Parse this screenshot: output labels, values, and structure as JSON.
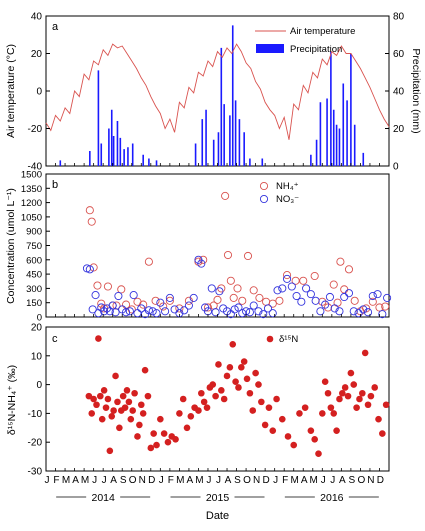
{
  "colors": {
    "air_temperature": "#d9534f",
    "precipitation": "#1a1aff",
    "nh4": "#d9534f",
    "no3": "#3333dd",
    "d15n": "#d42020",
    "axis": "#000000"
  },
  "chart_data": [
    {
      "panel": "a",
      "type": "line",
      "secondary_type": "bar",
      "ylabel": "Air temperature (°C)",
      "y2label": "Precipitation (mm)",
      "ylim": [
        -40,
        40
      ],
      "yticks": [
        -40,
        -20,
        0,
        20,
        40
      ],
      "y2lim": [
        0,
        80
      ],
      "y2ticks": [
        0,
        20,
        40,
        60,
        80
      ],
      "legend_placement": "top-right",
      "series": [
        {
          "name": "Air temperature",
          "axis": "left",
          "style": "line",
          "x": [
            0,
            0.5,
            1,
            1.5,
            2,
            2.5,
            3,
            3.5,
            4,
            4.5,
            5,
            5.5,
            6,
            6.5,
            7,
            7.5,
            8,
            8.5,
            9,
            9.5,
            10,
            10.5,
            11,
            11.5,
            12,
            12.5,
            13,
            13.5,
            14,
            14.5,
            15,
            15.5,
            16,
            16.5,
            17,
            17.5,
            18,
            18.5,
            19,
            19.5,
            20,
            20.5,
            21,
            21.5,
            22,
            22.5,
            23,
            23.5,
            24,
            24.5,
            25,
            25.5,
            26,
            26.5,
            27,
            27.5,
            28,
            28.5,
            29,
            29.5,
            30,
            30.5,
            31,
            31.5,
            32,
            32.5,
            33,
            33.5,
            34,
            34.5,
            35,
            35.5,
            36
          ],
          "values": [
            -17,
            -21,
            -13,
            -16,
            -9,
            -12,
            0,
            -3,
            9,
            6,
            16,
            14,
            22,
            19,
            25,
            23,
            24,
            20,
            16,
            12,
            7,
            3,
            -3,
            -8,
            -12,
            -20,
            -15,
            -22,
            -6,
            -9,
            2,
            -1,
            10,
            8,
            16,
            13,
            21,
            18,
            23,
            20,
            25,
            21,
            15,
            12,
            5,
            1,
            -6,
            -10,
            -13,
            -20,
            -14,
            -26,
            -7,
            -10,
            3,
            -1,
            10,
            7,
            17,
            14,
            21,
            19,
            24,
            20,
            20,
            16,
            12,
            7,
            2,
            -4,
            -10,
            -15,
            -19
          ]
        },
        {
          "name": "Precipitation",
          "axis": "right",
          "style": "bar",
          "x": [
            1.5,
            4.6,
            5.5,
            5.8,
            6.6,
            6.9,
            7.1,
            7.5,
            7.8,
            8.2,
            8.6,
            9.1,
            10.2,
            10.8,
            11.6,
            15.7,
            16.4,
            16.8,
            17.6,
            18.1,
            18.4,
            18.7,
            19.3,
            19.6,
            19.9,
            20.3,
            20.8,
            21.4,
            22.7,
            27.8,
            28.4,
            28.8,
            29.5,
            29.9,
            30.2,
            30.5,
            30.8,
            31.2,
            31.6,
            32.0,
            32.4,
            33.3
          ],
          "values": [
            3,
            8,
            51,
            12,
            20,
            30,
            16,
            24,
            15,
            9,
            10,
            12,
            6,
            4,
            3,
            12,
            25,
            30,
            14,
            18,
            63,
            33,
            27,
            75,
            35,
            25,
            18,
            4,
            4,
            6,
            14,
            34,
            36,
            61,
            30,
            22,
            20,
            44,
            35,
            60,
            22,
            7
          ]
        }
      ]
    },
    {
      "panel": "b",
      "type": "scatter",
      "ylabel": "Concentration (umol L⁻¹)",
      "ylim": [
        0,
        1500
      ],
      "yticks": [
        0,
        150,
        300,
        450,
        600,
        750,
        900,
        1050,
        1200,
        1350,
        1500
      ],
      "legend_placement": "top-right",
      "series": [
        {
          "name": "NH₄⁺",
          "marker": "open-circle",
          "x": [
            4.6,
            4.8,
            5.0,
            5.4,
            5.8,
            6.1,
            6.5,
            7.0,
            7.4,
            7.9,
            8.4,
            9.0,
            9.6,
            10.2,
            10.8,
            11.5,
            12.3,
            13.0,
            14.0,
            15.0,
            16.0,
            16.5,
            17.0,
            17.6,
            18.0,
            18.4,
            18.8,
            19.1,
            19.4,
            19.7,
            20.1,
            20.6,
            21.2,
            21.8,
            22.4,
            23.1,
            23.8,
            24.5,
            25.3,
            26.2,
            27.0,
            28.2,
            29.0,
            29.6,
            30.2,
            30.6,
            30.9,
            31.3,
            31.8,
            32.4,
            33.0,
            33.6,
            34.3,
            35.0,
            35.6
          ],
          "values": [
            1120,
            1000,
            520,
            330,
            140,
            90,
            320,
            120,
            120,
            290,
            130,
            80,
            160,
            130,
            580,
            170,
            110,
            170,
            90,
            170,
            580,
            600,
            100,
            120,
            180,
            300,
            1270,
            650,
            380,
            200,
            300,
            170,
            640,
            280,
            200,
            160,
            140,
            170,
            440,
            380,
            380,
            430,
            160,
            100,
            340,
            150,
            580,
            290,
            500,
            170,
            60,
            90,
            160,
            100,
            110
          ]
        },
        {
          "name": "NO₃⁻",
          "marker": "open-circle",
          "x": [
            4.3,
            4.6,
            4.9,
            5.2,
            5.5,
            5.8,
            6.1,
            6.4,
            6.7,
            7.0,
            7.3,
            7.6,
            8.0,
            8.4,
            8.8,
            9.2,
            9.6,
            10.0,
            10.4,
            10.8,
            11.2,
            11.6,
            12.0,
            12.5,
            13.0,
            13.5,
            14.0,
            14.5,
            15.0,
            15.5,
            16.0,
            16.3,
            16.7,
            17.0,
            17.4,
            17.8,
            18.2,
            18.6,
            19.0,
            19.4,
            19.8,
            20.2,
            20.6,
            21.0,
            21.4,
            21.8,
            22.3,
            22.8,
            23.3,
            23.8,
            24.3,
            24.8,
            25.3,
            25.8,
            26.3,
            26.8,
            27.3,
            27.8,
            28.3,
            28.8,
            29.3,
            29.8,
            30.3,
            30.8,
            31.3,
            31.8,
            32.3,
            32.8,
            33.3,
            33.8,
            34.3,
            34.8,
            35.3,
            35.8
          ],
          "values": [
            510,
            500,
            80,
            230,
            40,
            100,
            60,
            90,
            60,
            120,
            50,
            220,
            80,
            50,
            60,
            230,
            40,
            90,
            30,
            70,
            60,
            40,
            150,
            60,
            200,
            80,
            40,
            70,
            120,
            200,
            600,
            560,
            100,
            60,
            300,
            50,
            270,
            90,
            60,
            30,
            80,
            100,
            40,
            60,
            50,
            120,
            60,
            30,
            90,
            40,
            280,
            300,
            400,
            320,
            220,
            160,
            300,
            240,
            170,
            60,
            130,
            210,
            90,
            60,
            210,
            250,
            60,
            40,
            80,
            50,
            220,
            240,
            30,
            200
          ]
        }
      ]
    },
    {
      "panel": "c",
      "type": "scatter",
      "ylabel": "δ¹⁵N-NH₄⁺ (‰)",
      "ylim": [
        -30,
        20
      ],
      "yticks": [
        -30,
        -20,
        -10,
        0,
        10,
        20
      ],
      "legend_placement": "top-right",
      "xlabel": "Date",
      "month_ticks": [
        "J",
        "F",
        "M",
        "A",
        "M",
        "J",
        "J",
        "A",
        "S",
        "O",
        "N",
        "D",
        "J",
        "F",
        "M",
        "A",
        "M",
        "J",
        "J",
        "A",
        "S",
        "O",
        "N",
        "D",
        "J",
        "F",
        "M",
        "A",
        "M",
        "J",
        "J",
        "A",
        "S",
        "O",
        "N",
        "D"
      ],
      "years": [
        "2014",
        "2015",
        "2016"
      ],
      "series": [
        {
          "name": "δ¹⁵N",
          "marker": "filled-circle",
          "x": [
            4.5,
            4.8,
            5.0,
            5.3,
            5.5,
            5.7,
            5.9,
            6.1,
            6.3,
            6.5,
            6.7,
            6.9,
            7.1,
            7.3,
            7.5,
            7.7,
            7.9,
            8.1,
            8.3,
            8.5,
            8.7,
            8.9,
            9.1,
            9.3,
            9.6,
            9.8,
            10.0,
            10.2,
            10.4,
            10.7,
            11.0,
            11.3,
            11.6,
            12.0,
            12.4,
            12.8,
            13.2,
            13.6,
            14.0,
            14.4,
            14.8,
            15.2,
            15.6,
            16.0,
            16.3,
            16.6,
            16.9,
            17.2,
            17.5,
            17.8,
            18.1,
            18.4,
            18.7,
            19.0,
            19.3,
            19.6,
            19.9,
            20.2,
            20.5,
            20.8,
            21.1,
            21.4,
            21.7,
            22.0,
            22.3,
            22.6,
            23.0,
            23.4,
            23.8,
            24.2,
            24.8,
            25.4,
            26.0,
            26.6,
            27.2,
            27.8,
            28.2,
            28.6,
            29.0,
            29.3,
            29.6,
            29.9,
            30.2,
            30.5,
            30.8,
            31.1,
            31.4,
            31.7,
            32.0,
            32.3,
            32.6,
            32.9,
            33.2,
            33.5,
            33.8,
            34.1,
            34.5,
            34.9,
            35.3,
            35.7
          ],
          "values": [
            -4,
            -10,
            -5,
            -7,
            16,
            -4,
            -12,
            -2,
            -8,
            -5,
            -23,
            -11,
            -9,
            3,
            -6,
            -15,
            -9,
            -4,
            -8,
            -2,
            -6,
            -12,
            -9,
            -3,
            -18,
            -14,
            -7,
            -10,
            5,
            -4,
            -22,
            -17,
            -21,
            -12,
            -17,
            -20,
            -18,
            -19,
            -10,
            -5,
            -15,
            -11,
            -8,
            -9,
            -3,
            -6,
            -8,
            -1,
            0,
            -4,
            7,
            -2,
            -5,
            3,
            6,
            14,
            1,
            -1,
            6,
            8,
            2,
            -3,
            -9,
            4,
            0,
            -6,
            -14,
            -8,
            -16,
            -5,
            -12,
            -18,
            -21,
            -10,
            -8,
            -16,
            -19,
            -24,
            -10,
            1,
            -3,
            -8,
            -10,
            -16,
            -5,
            -3,
            -1,
            -4,
            4,
            0,
            -8,
            -5,
            -3,
            11,
            -7,
            -4,
            -1,
            -12,
            -17,
            -7
          ]
        }
      ]
    }
  ]
}
